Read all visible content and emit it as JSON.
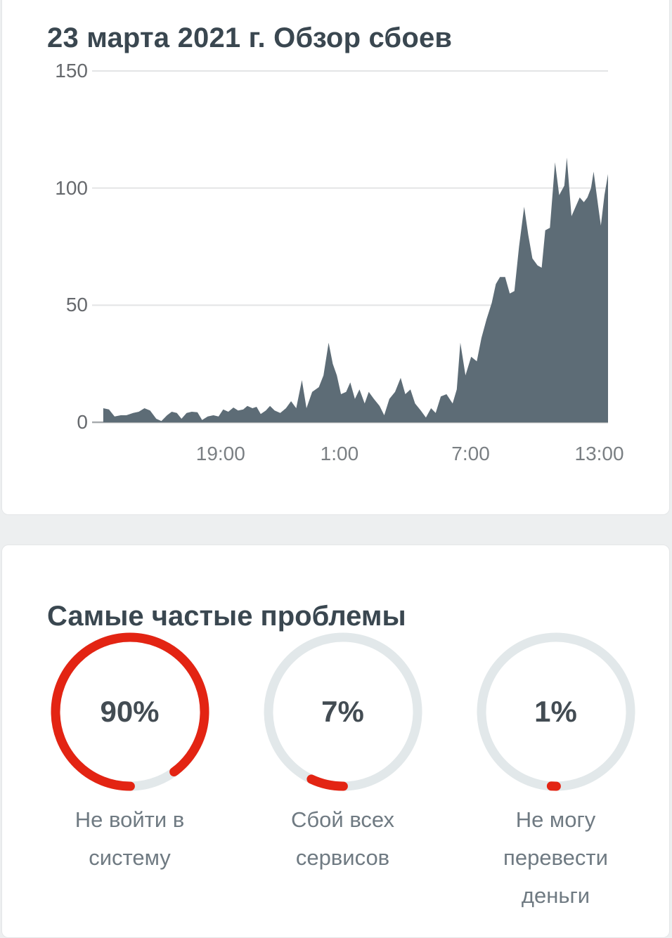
{
  "page": {
    "background": "#edeff0"
  },
  "chart_data": [
    {
      "type": "area",
      "title": "23 марта 2021 г. Обзор сбоев",
      "ylim": [
        0,
        150
      ],
      "y_ticks": [
        0,
        50,
        100,
        150
      ],
      "x_ticks": [
        [
          "19:00",
          0.247
        ],
        [
          "1:00",
          0.478
        ],
        [
          "7:00",
          0.733
        ],
        [
          "13:00",
          0.983
        ]
      ],
      "grid": "horizontal-only",
      "fill_color": "#5d6c76",
      "axis_color": "#a7abae",
      "gridline_color": "#e3e4e5",
      "points": [
        [
          0.019,
          6
        ],
        [
          0.03,
          5.5
        ],
        [
          0.041,
          2.5
        ],
        [
          0.053,
          3
        ],
        [
          0.064,
          3
        ],
        [
          0.077,
          4
        ],
        [
          0.088,
          4.5
        ],
        [
          0.099,
          6
        ],
        [
          0.11,
          5
        ],
        [
          0.122,
          1.5
        ],
        [
          0.132,
          0.5
        ],
        [
          0.143,
          3
        ],
        [
          0.152,
          4.5
        ],
        [
          0.162,
          4
        ],
        [
          0.171,
          1.5
        ],
        [
          0.181,
          4
        ],
        [
          0.191,
          4.5
        ],
        [
          0.202,
          4.3
        ],
        [
          0.211,
          1
        ],
        [
          0.222,
          2.5
        ],
        [
          0.233,
          3
        ],
        [
          0.243,
          2.5
        ],
        [
          0.252,
          5.5
        ],
        [
          0.262,
          4.5
        ],
        [
          0.272,
          6.3
        ],
        [
          0.281,
          5
        ],
        [
          0.291,
          5.5
        ],
        [
          0.299,
          7
        ],
        [
          0.309,
          6
        ],
        [
          0.317,
          6.6
        ],
        [
          0.325,
          3.5
        ],
        [
          0.335,
          5
        ],
        [
          0.343,
          7
        ],
        [
          0.352,
          5
        ],
        [
          0.363,
          4
        ],
        [
          0.374,
          6
        ],
        [
          0.384,
          9
        ],
        [
          0.394,
          6
        ],
        [
          0.405,
          18
        ],
        [
          0.414,
          6
        ],
        [
          0.425,
          13
        ],
        [
          0.438,
          15
        ],
        [
          0.447,
          20
        ],
        [
          0.457,
          34
        ],
        [
          0.465,
          25
        ],
        [
          0.473,
          20
        ],
        [
          0.481,
          12
        ],
        [
          0.491,
          13
        ],
        [
          0.499,
          17
        ],
        [
          0.508,
          10
        ],
        [
          0.517,
          14
        ],
        [
          0.527,
          8
        ],
        [
          0.535,
          13
        ],
        [
          0.545,
          10
        ],
        [
          0.556,
          7
        ],
        [
          0.565,
          3
        ],
        [
          0.575,
          10
        ],
        [
          0.586,
          13
        ],
        [
          0.597,
          19
        ],
        [
          0.606,
          12
        ],
        [
          0.616,
          14
        ],
        [
          0.625,
          8
        ],
        [
          0.636,
          5
        ],
        [
          0.646,
          2
        ],
        [
          0.656,
          6
        ],
        [
          0.665,
          4
        ],
        [
          0.675,
          11
        ],
        [
          0.686,
          12
        ],
        [
          0.698,
          8
        ],
        [
          0.706,
          14
        ],
        [
          0.713,
          34
        ],
        [
          0.723,
          20
        ],
        [
          0.734,
          28
        ],
        [
          0.745,
          26
        ],
        [
          0.754,
          36
        ],
        [
          0.764,
          44
        ],
        [
          0.774,
          51
        ],
        [
          0.782,
          59
        ],
        [
          0.79,
          62
        ],
        [
          0.8,
          62
        ],
        [
          0.809,
          55
        ],
        [
          0.818,
          56
        ],
        [
          0.827,
          75
        ],
        [
          0.837,
          92
        ],
        [
          0.845,
          80
        ],
        [
          0.853,
          70
        ],
        [
          0.863,
          67
        ],
        [
          0.871,
          66
        ],
        [
          0.878,
          82
        ],
        [
          0.887,
          83
        ],
        [
          0.897,
          111
        ],
        [
          0.905,
          97
        ],
        [
          0.915,
          101
        ],
        [
          0.92,
          113
        ],
        [
          0.929,
          88
        ],
        [
          0.937,
          92
        ],
        [
          0.945,
          96
        ],
        [
          0.953,
          94
        ],
        [
          0.96,
          96
        ],
        [
          0.967,
          100
        ],
        [
          0.972,
          107
        ],
        [
          0.981,
          92
        ],
        [
          0.986,
          84
        ],
        [
          0.993,
          97
        ],
        [
          1.0,
          106
        ]
      ]
    },
    {
      "type": "donut-set",
      "title": "Самые частые проблемы",
      "unit": "%",
      "accent_color": "#e32413",
      "track_color": "#e2e8ea",
      "items": [
        {
          "value": 90,
          "display": "90%",
          "label": "Не войти в систему"
        },
        {
          "value": 7,
          "display": "7%",
          "label": "Сбой всех сервисов"
        },
        {
          "value": 1,
          "display": "1%",
          "label": "Не могу перевести деньги"
        }
      ]
    }
  ]
}
